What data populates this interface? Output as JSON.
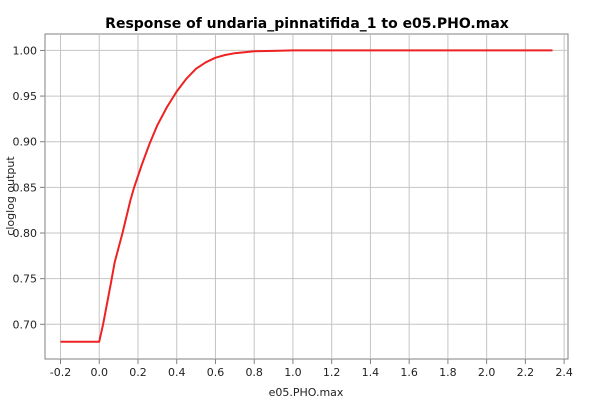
{
  "chart_data": {
    "type": "line",
    "title": "Response of undaria_pinnatifida_1 to e05.PHO.max",
    "xlabel": "e05.PHO.max",
    "ylabel": "cloglog output",
    "xlim": [
      -0.28,
      2.42
    ],
    "ylim": [
      0.662,
      1.018
    ],
    "xticks": [
      -0.2,
      0.0,
      0.2,
      0.4,
      0.6,
      0.8,
      1.0,
      1.2,
      1.4,
      1.6,
      1.8,
      2.0,
      2.2,
      2.4
    ],
    "xtick_labels": [
      "-0.2",
      "0.0",
      "0.2",
      "0.4",
      "0.6",
      "0.8",
      "1.0",
      "1.2",
      "1.4",
      "1.6",
      "1.8",
      "2.0",
      "2.2",
      "2.4"
    ],
    "yticks": [
      0.7,
      0.75,
      0.8,
      0.85,
      0.9,
      0.95,
      1.0
    ],
    "ytick_labels": [
      "0.70",
      "0.75",
      "0.80",
      "0.85",
      "0.90",
      "0.95",
      "1.00"
    ],
    "grid": true,
    "series": [
      {
        "name": "",
        "color": "#ee2222",
        "x": [
          -0.2,
          0.0,
          0.02,
          0.06,
          0.08,
          0.12,
          0.16,
          0.18,
          0.22,
          0.26,
          0.3,
          0.35,
          0.4,
          0.45,
          0.5,
          0.55,
          0.6,
          0.65,
          0.7,
          0.75,
          0.8,
          0.9,
          1.0,
          1.2,
          1.6,
          2.0,
          2.34
        ],
        "y": [
          0.681,
          0.681,
          0.7,
          0.745,
          0.768,
          0.8,
          0.835,
          0.85,
          0.875,
          0.898,
          0.918,
          0.938,
          0.955,
          0.969,
          0.98,
          0.987,
          0.992,
          0.995,
          0.997,
          0.998,
          0.999,
          0.9995,
          1.0,
          1.0,
          1.0,
          1.0,
          1.0
        ]
      }
    ]
  }
}
